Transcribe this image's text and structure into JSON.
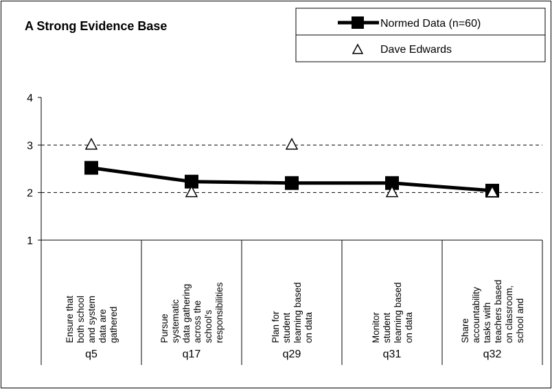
{
  "chart_data": {
    "type": "line",
    "title": "A Strong Evidence Base",
    "ylim": [
      1,
      4
    ],
    "yticks": [
      1,
      2,
      3,
      4
    ],
    "grid": "horizontal dashed",
    "legend_placement": "top-right",
    "codes": [
      "q5",
      "q17",
      "q29",
      "q31",
      "q32"
    ],
    "descriptions": [
      [
        "Ensure that",
        "both school",
        "and system",
        "data are",
        "gathered"
      ],
      [
        "Pursue",
        "systematic",
        "data gathering",
        "across the",
        "school's",
        "responsibilities"
      ],
      [
        "Plan for",
        "student",
        "learning based",
        "on data"
      ],
      [
        "Monitor",
        "student",
        "learning based",
        "on data"
      ],
      [
        "Share",
        "accountability",
        "tasks with",
        "teachers based",
        "on classroom,",
        "school and"
      ]
    ],
    "series": [
      {
        "name": "Normed Data (n=60)",
        "marker": "filled-square",
        "color": "#000000",
        "values": [
          2.52,
          2.23,
          2.2,
          2.2,
          2.04
        ]
      },
      {
        "name": "Dave Edwards",
        "marker": "open-triangle",
        "color": "#000000",
        "values": [
          3,
          2,
          3,
          2,
          2
        ]
      }
    ]
  }
}
